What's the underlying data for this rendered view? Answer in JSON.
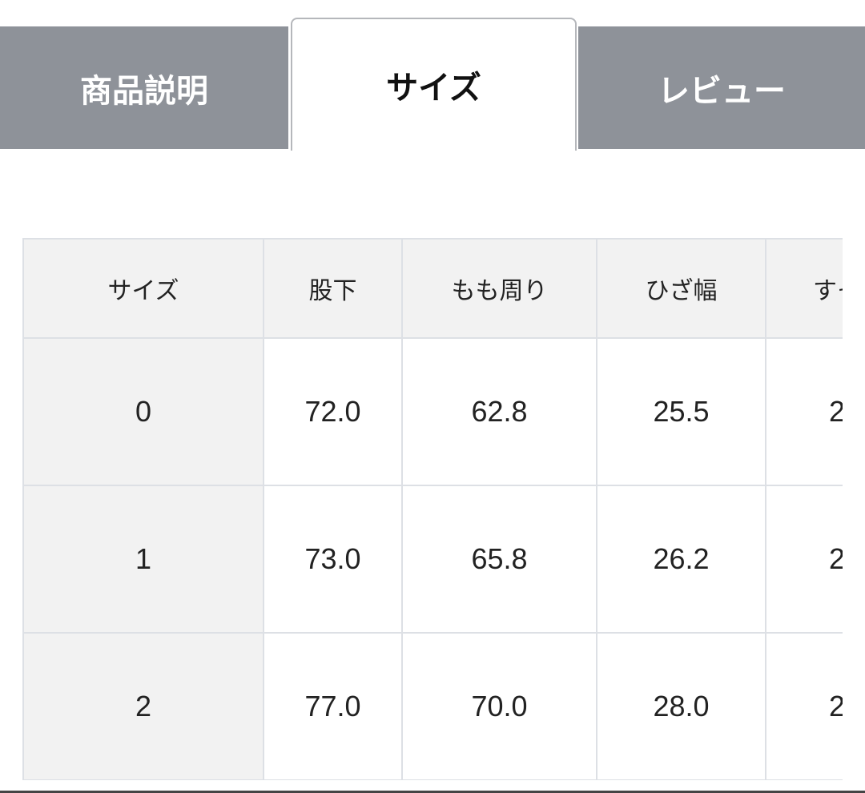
{
  "tabs": [
    {
      "label": "商品説明",
      "active": false
    },
    {
      "label": "サイズ",
      "active": true
    },
    {
      "label": "レビュー",
      "active": false
    }
  ],
  "size_table": {
    "headers": [
      "サイズ",
      "股下",
      "もも周り",
      "ひざ幅",
      "すそ"
    ],
    "rows": [
      [
        "0",
        "72.0",
        "62.8",
        "25.5",
        "2"
      ],
      [
        "1",
        "73.0",
        "65.8",
        "26.2",
        "2"
      ],
      [
        "2",
        "77.0",
        "70.0",
        "28.0",
        "2"
      ]
    ]
  },
  "colors": {
    "inactive_tab": "#8e9299",
    "border": "#dde0e5",
    "header_bg": "#f2f2f2"
  }
}
